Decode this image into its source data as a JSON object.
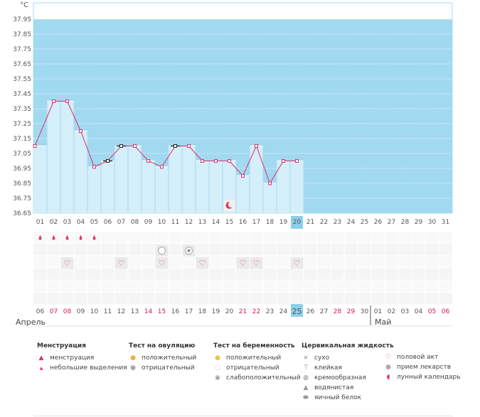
{
  "chart_data": {
    "type": "bar",
    "unit": "°C",
    "ylim": [
      36.65,
      37.95
    ],
    "yticks": [
      "37.95",
      "37.85",
      "37.75",
      "37.65",
      "37.55",
      "37.45",
      "37.35",
      "37.25",
      "37.15",
      "37.05",
      "36.95",
      "36.85",
      "36.75",
      "36.65"
    ],
    "cycle_days": [
      "01",
      "02",
      "03",
      "04",
      "05",
      "06",
      "07",
      "08",
      "09",
      "10",
      "11",
      "12",
      "13",
      "14",
      "15",
      "16",
      "17",
      "18",
      "19",
      "20",
      "21",
      "22",
      "23",
      "24",
      "25",
      "26",
      "27",
      "28",
      "29",
      "30",
      "31"
    ],
    "temperatures": [
      37.1,
      37.4,
      37.4,
      37.2,
      36.96,
      37.0,
      37.1,
      37.1,
      37.0,
      36.96,
      37.1,
      37.1,
      37.0,
      37.0,
      37.0,
      36.9,
      37.1,
      36.85,
      37.0,
      37.0
    ],
    "outlined_points": [
      5,
      6,
      10
    ],
    "current_day_index": 19,
    "calendar_dates": [
      "06",
      "07",
      "08",
      "09",
      "10",
      "11",
      "12",
      "13",
      "14",
      "15",
      "16",
      "17",
      "18",
      "19",
      "20",
      "21",
      "22",
      "23",
      "24",
      "25",
      "26",
      "27",
      "28",
      "29",
      "30",
      "01",
      "02",
      "03",
      "04",
      "05",
      "06"
    ],
    "calendar_red_indices": [
      1,
      2,
      8,
      9,
      15,
      16,
      22,
      23,
      29,
      30
    ],
    "month_labels": [
      {
        "text": "Апрель",
        "index": 0
      },
      {
        "text": "Май",
        "index": 25
      }
    ],
    "moon_day_index": 14,
    "menstruation_days": [
      0,
      1,
      2,
      3,
      4
    ],
    "ovulation_test_negative_days": [
      9,
      11
    ],
    "intercourse_days": [
      2,
      6,
      9,
      12,
      15,
      16,
      19
    ],
    "colors": {
      "area": "#a1d9f1",
      "bar": "#d4eefa",
      "bar_border": "#a9dbf0",
      "line": "#e0306d",
      "highlight": "#8ccfea",
      "red_text": "#d0184c"
    }
  },
  "legend": {
    "menstruation": {
      "title": "Менструация",
      "items": [
        {
          "label": "менструация",
          "icon": "drop-icon"
        },
        {
          "label": "небольшие выделения",
          "icon": "small-drop-icon"
        }
      ]
    },
    "ovulation": {
      "title": "Тест на овуляцию",
      "items": [
        {
          "label": "положительный",
          "icon": "positive-circle-icon"
        },
        {
          "label": "отрицательный",
          "icon": "negative-circle-icon"
        }
      ]
    },
    "pregnancy": {
      "title": "Тест на беременность",
      "items": [
        {
          "label": "положительный",
          "icon": "positive-circle-icon"
        },
        {
          "label": "отрицательный",
          "icon": "negative-circle-icon"
        },
        {
          "label": "слабоположительный",
          "icon": "weak-circle-icon"
        }
      ]
    },
    "cervical": {
      "title": "Цервикальная жидкость",
      "items": [
        {
          "label": "сухо",
          "icon": "dry-icon"
        },
        {
          "label": "клейкая",
          "icon": "sticky-icon"
        },
        {
          "label": "кремообразная",
          "icon": "creamy-icon"
        },
        {
          "label": "водянистая",
          "icon": "watery-icon"
        },
        {
          "label": "яичный белок",
          "icon": "egg-white-icon"
        }
      ]
    },
    "other": {
      "items": [
        {
          "label": "половой акт",
          "icon": "heart-icon"
        },
        {
          "label": "прием лекарств",
          "icon": "pill-icon"
        },
        {
          "label": "лунный календарь",
          "icon": "moon-icon"
        }
      ]
    }
  }
}
